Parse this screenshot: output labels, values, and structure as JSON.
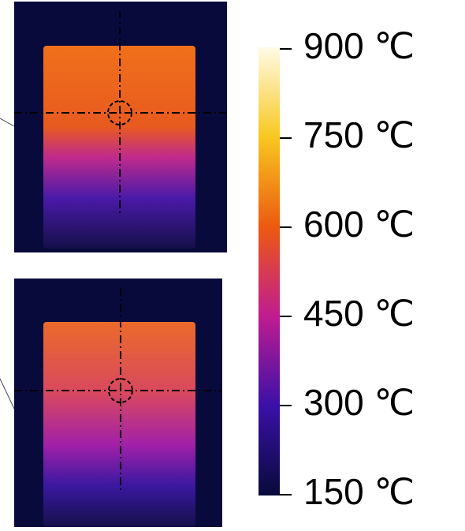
{
  "colorbar": {
    "ticks": [
      "900 ℃",
      "750 ℃",
      "600 ℃",
      "450 ℃",
      "300 ℃",
      "150 ℃"
    ]
  }
}
